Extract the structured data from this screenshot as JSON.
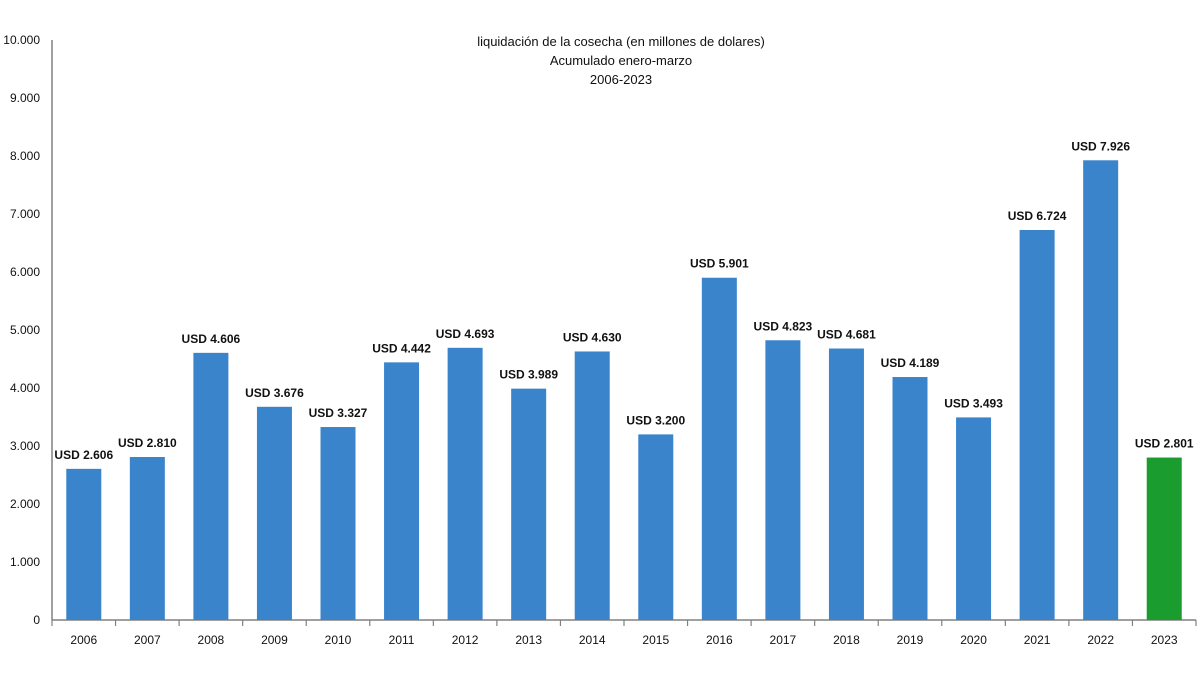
{
  "chart_data": {
    "type": "bar",
    "title": "liquidación de la cosecha (en millones de dolares)",
    "subtitle": [
      "Acumulado enero-marzo",
      "2006-2023"
    ],
    "xlabel": "",
    "ylabel": "",
    "ylim": [
      0,
      10000
    ],
    "yticks": [
      0,
      1000,
      2000,
      3000,
      4000,
      5000,
      6000,
      7000,
      8000,
      9000,
      10000
    ],
    "ytick_labels": [
      "0",
      "1.000",
      "2.000",
      "3.000",
      "4.000",
      "5.000",
      "6.000",
      "7.000",
      "8.000",
      "9.000",
      "10.000"
    ],
    "grid": false,
    "categories": [
      "2006",
      "2007",
      "2008",
      "2009",
      "2010",
      "2011",
      "2012",
      "2013",
      "2014",
      "2015",
      "2016",
      "2017",
      "2018",
      "2019",
      "2020",
      "2021",
      "2022",
      "2023"
    ],
    "values": [
      2606,
      2810,
      4606,
      3676,
      3327,
      4442,
      4693,
      3989,
      4630,
      3200,
      5901,
      4823,
      4681,
      4189,
      3493,
      6724,
      7926,
      2801
    ],
    "data_labels": [
      "USD 2.606",
      "USD 2.810",
      "USD 4.606",
      "USD 3.676",
      "USD 3.327",
      "USD 4.442",
      "USD 4.693",
      "USD 3.989",
      "USD 4.630",
      "USD 3.200",
      "USD 5.901",
      "USD 4.823",
      "USD 4.681",
      "USD 4.189",
      "USD 3.493",
      "USD 6.724",
      "USD 7.926",
      "USD 2.801"
    ],
    "colors": {
      "default": "#3a84cc",
      "highlight": "#1a9c2e",
      "axis": "#808080"
    },
    "highlight_category": "2023"
  }
}
